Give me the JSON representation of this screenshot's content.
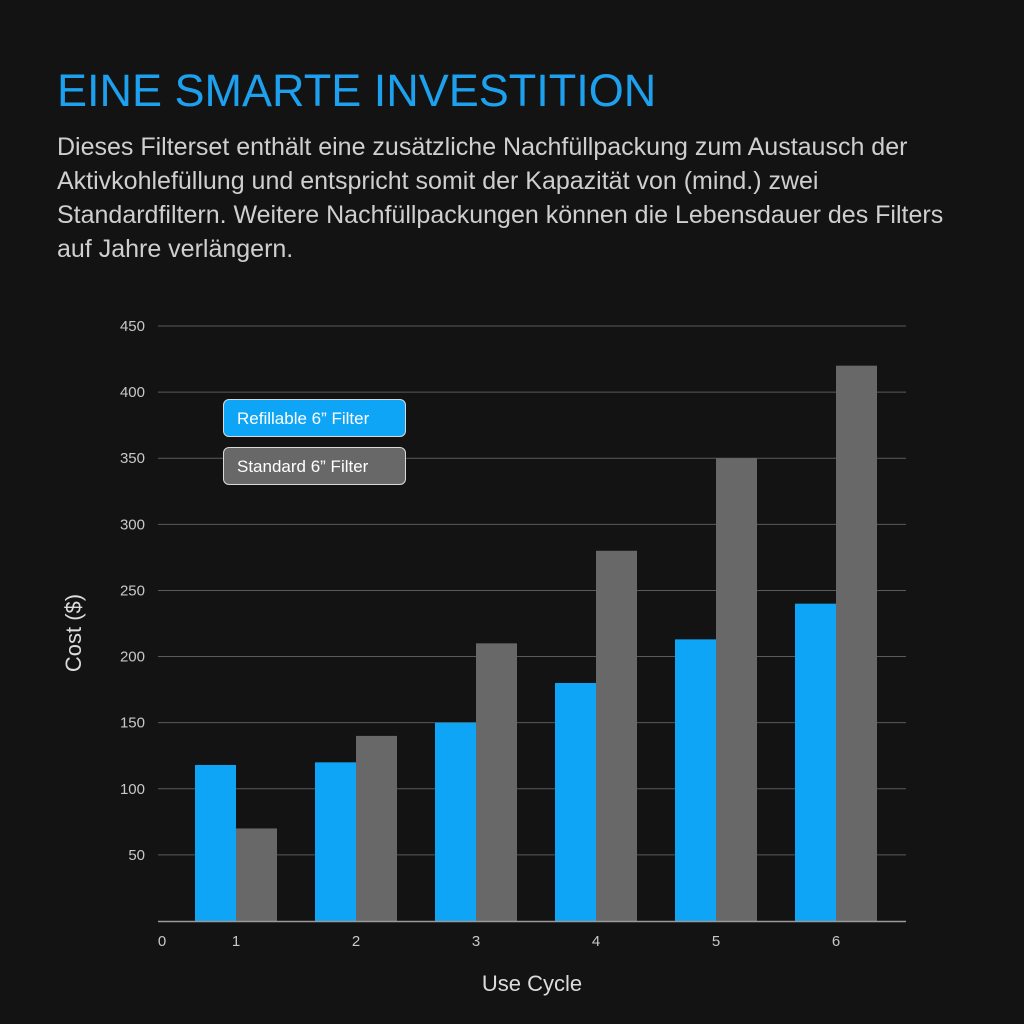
{
  "headline": "EINE SMARTE INVESTITION",
  "intro": "Dieses Filterset enthält eine zusätzliche Nachfüllpackung zum Austausch der Aktivkohlefüllung und entspricht somit der Kapazität von (mind.) zwei Standardfiltern. Weitere Nachfüllpackungen können die Lebensdauer des Filters auf Jahre verlängern.",
  "chart_data": {
    "type": "bar",
    "title": "",
    "xlabel": "Use Cycle",
    "ylabel": "Cost ($)",
    "categories": [
      "1",
      "2",
      "3",
      "4",
      "5",
      "6"
    ],
    "x_origin_label": "0",
    "yticks": [
      50,
      100,
      150,
      200,
      250,
      300,
      350,
      400,
      450
    ],
    "ylim": [
      0,
      450
    ],
    "grid": true,
    "legend_position": "top-left",
    "series": [
      {
        "name": "Refillable 6” Filter",
        "color": "#0ea5f6",
        "values": [
          118,
          120,
          150,
          180,
          213,
          240
        ]
      },
      {
        "name": "Standard 6” Filter",
        "color": "#686868",
        "values": [
          70,
          140,
          210,
          280,
          350,
          420
        ]
      }
    ]
  },
  "colors": {
    "background": "#141314",
    "accent": "#1da0ee",
    "grid": "#5a5a5a"
  }
}
